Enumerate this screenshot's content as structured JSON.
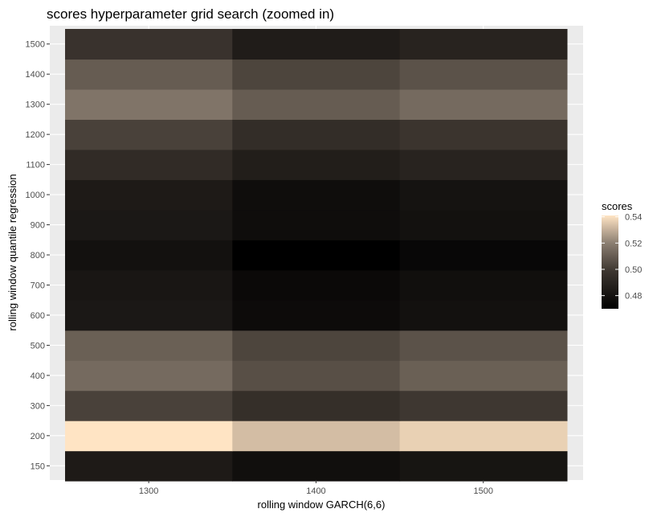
{
  "chart_data": {
    "type": "heatmap",
    "title": "scores hyperparameter grid search (zoomed in)",
    "xlabel": "rolling window GARCH(6,6)",
    "ylabel": "rolling window quantile regression",
    "x": [
      1300,
      1400,
      1500
    ],
    "y": [
      150,
      200,
      300,
      400,
      500,
      600,
      700,
      800,
      900,
      1000,
      1100,
      1200,
      1300,
      1400,
      1500
    ],
    "y_tick_labels": [
      "150",
      "200",
      "300",
      "400",
      "500",
      "600",
      "700",
      "800",
      "900",
      "1000",
      "1100",
      "1200",
      "1300",
      "1400",
      "1500"
    ],
    "x_tick_labels": [
      "1300",
      "1400",
      "1500"
    ],
    "values": [
      [
        0.484,
        0.478,
        0.481
      ],
      [
        0.541,
        0.533,
        0.537
      ],
      [
        0.502,
        0.495,
        0.499
      ],
      [
        0.514,
        0.506,
        0.511
      ],
      [
        0.511,
        0.503,
        0.507
      ],
      [
        0.483,
        0.476,
        0.479
      ],
      [
        0.482,
        0.475,
        0.478
      ],
      [
        0.479,
        0.47,
        0.474
      ],
      [
        0.483,
        0.477,
        0.479
      ],
      [
        0.484,
        0.477,
        0.48
      ],
      [
        0.493,
        0.486,
        0.489
      ],
      [
        0.502,
        0.494,
        0.498
      ],
      [
        0.517,
        0.51,
        0.514
      ],
      [
        0.51,
        0.503,
        0.507
      ],
      [
        0.497,
        0.485,
        0.489
      ]
    ],
    "legend": {
      "title": "scores",
      "placement": "right",
      "ticks": [
        0.48,
        0.5,
        0.52,
        0.54
      ],
      "tick_labels": [
        "0.48",
        "0.50",
        "0.52",
        "0.54"
      ],
      "range": [
        0.47,
        0.541
      ]
    },
    "colors": {
      "low": "#000000",
      "mid": "#8a7d70",
      "high": "#ffe4c4",
      "panel_bg": "#ebebeb",
      "grid": "#ffffff"
    }
  }
}
